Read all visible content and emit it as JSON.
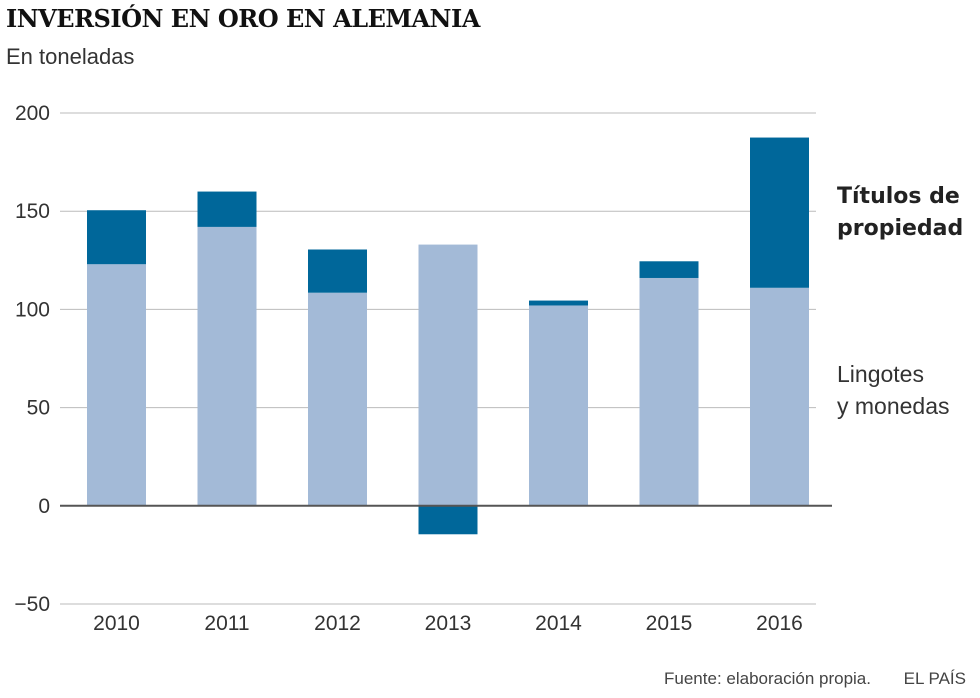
{
  "title": "INVERSIÓN EN ORO EN ALEMANIA",
  "subtitle": "En toneladas",
  "source": "Fuente: elaboración propia.",
  "brand": "EL PAÍS",
  "colors": {
    "titulos": "#00679a",
    "lingotes": "#a3bad7",
    "grid": "#bbbbbb",
    "axis": "#555555"
  },
  "chart_data": {
    "type": "bar",
    "stacked": true,
    "categories": [
      "2010",
      "2011",
      "2012",
      "2013",
      "2014",
      "2015",
      "2016"
    ],
    "series": [
      {
        "name": "Lingotes y monedas",
        "values": [
          123,
          142,
          108.5,
          133,
          102,
          116,
          111
        ]
      },
      {
        "name": "Títulos de propiedad",
        "values": [
          27.5,
          18,
          22,
          -14.5,
          2.5,
          8.5,
          76.5
        ]
      }
    ],
    "yticks": [
      "200",
      "150",
      "100",
      "50",
      "0",
      "−50"
    ],
    "ylim": [
      -50,
      200
    ],
    "grid": true,
    "legend": {
      "titulos_line1": "Títulos de",
      "titulos_line2": "propiedad",
      "lingotes_line1": "Lingotes",
      "lingotes_line2": "y monedas"
    }
  }
}
